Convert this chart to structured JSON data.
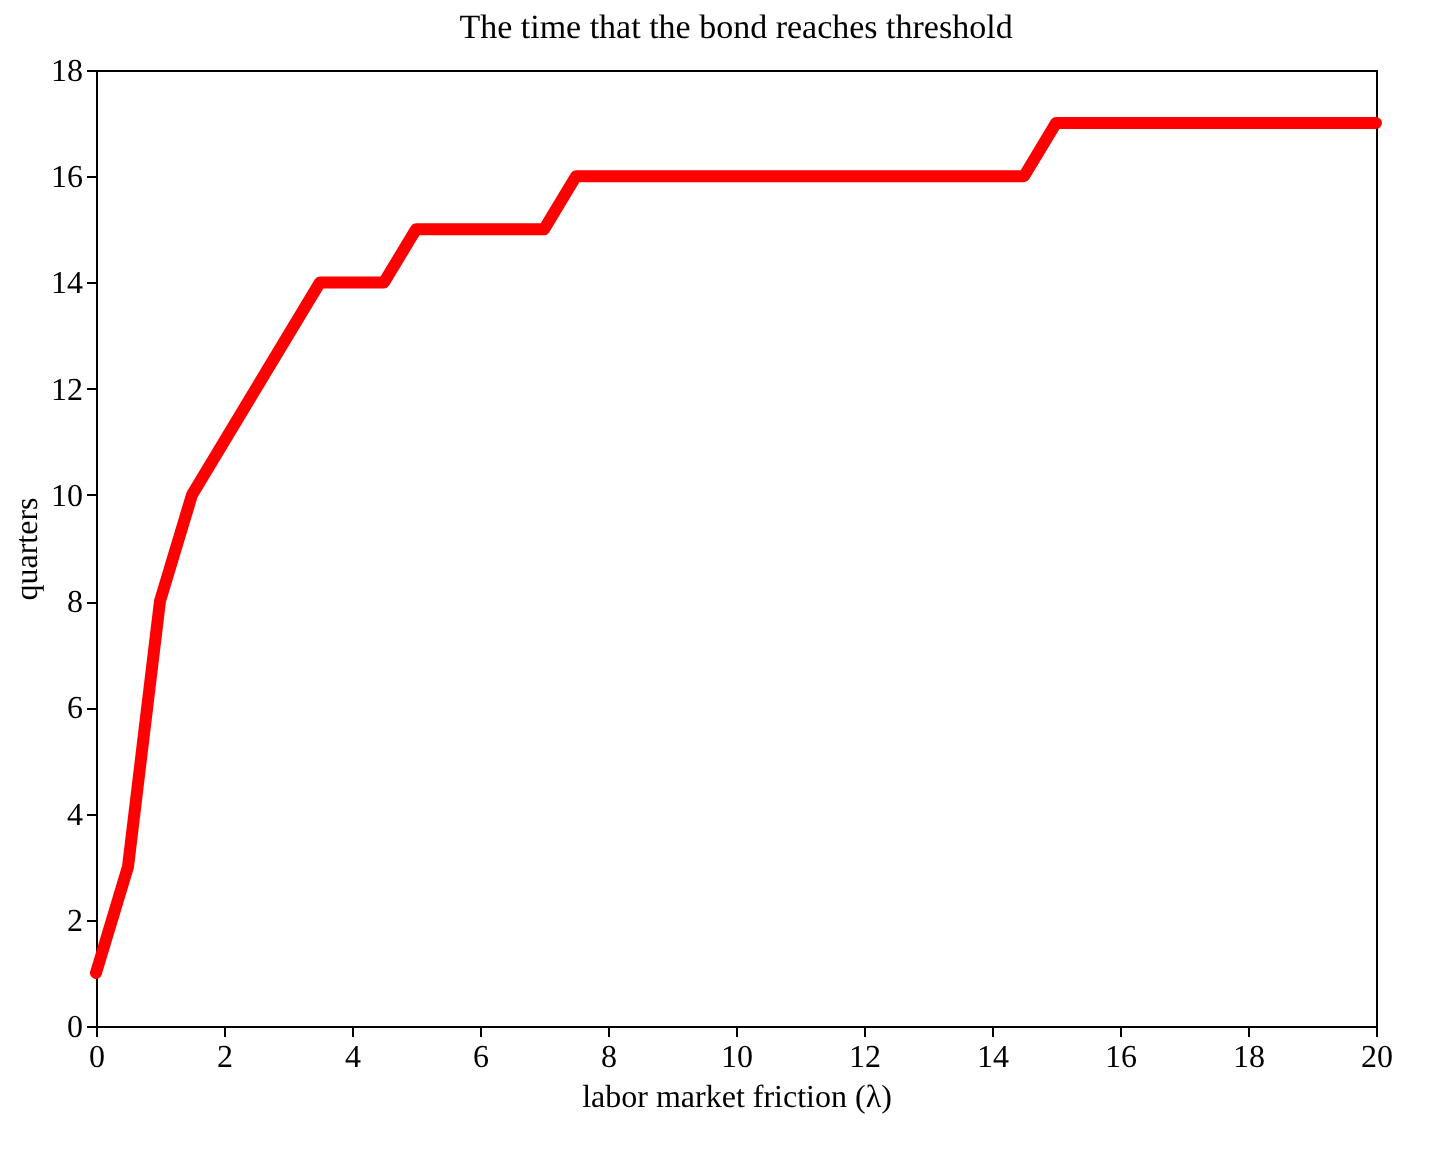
{
  "chart_data": {
    "type": "line",
    "title": "The time that the bond reaches threshold",
    "xlabel": "labor market friction (λ)",
    "ylabel": "quarters",
    "x": [
      0,
      0.5,
      1,
      1.5,
      3.5,
      4.5,
      5,
      7,
      7.5,
      14.5,
      15,
      20
    ],
    "series": [
      {
        "color": "#ff0000",
        "values": [
          1,
          3,
          8,
          10,
          14,
          14,
          15,
          15,
          16,
          16,
          17,
          17
        ]
      }
    ],
    "xlim": [
      0,
      20
    ],
    "xticks": [
      0,
      2,
      4,
      6,
      8,
      10,
      12,
      14,
      16,
      18,
      20
    ],
    "ylim": [
      0,
      18
    ],
    "yticks": [
      0,
      2,
      4,
      6,
      8,
      10,
      12,
      14,
      16,
      18
    ],
    "grid": false,
    "marker": "none",
    "line_style": "solid"
  }
}
